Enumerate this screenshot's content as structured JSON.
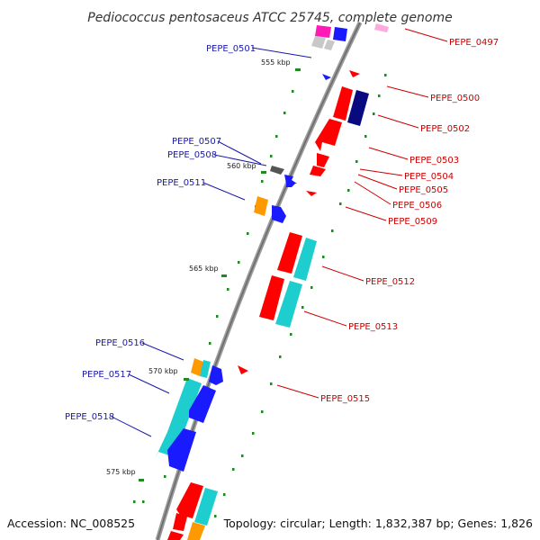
{
  "title": "Pediococcus pentosaceus ATCC 25745, complete genome",
  "footer": {
    "accession": "Accession: NC_008525",
    "summary": "Topology: circular; Length: 1,832,387 bp; Genes: 1,826"
  },
  "colors": {
    "backbone": "#808080",
    "tick": "#1f8a1f",
    "forward_label": "#cc0000",
    "reverse_label": "#1a1aa6",
    "red": "#ff0000",
    "dark_red": "#cc0000",
    "blue": "#1a1aff",
    "navy": "#0a0a80",
    "cyan": "#1ecece",
    "orange": "#ff9900",
    "magenta": "#ff1ab8",
    "pink": "#ffaadd",
    "gray": "#c8c8c8",
    "dark_gray": "#555555"
  },
  "kbp_ticks": [
    {
      "kbp": 555,
      "label": "555 kbp"
    },
    {
      "kbp": 560,
      "label": "560 kbp"
    },
    {
      "kbp": 565,
      "label": "565 kbp"
    },
    {
      "kbp": 570,
      "label": "570 kbp"
    },
    {
      "kbp": 575,
      "label": "575 kbp"
    }
  ],
  "genes": [
    {
      "id": "PEPE_0497",
      "side": "right"
    },
    {
      "id": "PEPE_0500",
      "side": "right"
    },
    {
      "id": "PEPE_0502",
      "side": "right"
    },
    {
      "id": "PEPE_0503",
      "side": "right"
    },
    {
      "id": "PEPE_0504",
      "side": "right"
    },
    {
      "id": "PEPE_0505",
      "side": "right"
    },
    {
      "id": "PEPE_0506",
      "side": "right"
    },
    {
      "id": "PEPE_0509",
      "side": "right"
    },
    {
      "id": "PEPE_0512",
      "side": "right"
    },
    {
      "id": "PEPE_0513",
      "side": "right"
    },
    {
      "id": "PEPE_0515",
      "side": "right"
    },
    {
      "id": "PEPE_0501",
      "side": "left"
    },
    {
      "id": "PEPE_0507",
      "side": "left"
    },
    {
      "id": "PEPE_0508",
      "side": "left"
    },
    {
      "id": "PEPE_0511",
      "side": "left"
    },
    {
      "id": "PEPE_0516",
      "side": "left"
    },
    {
      "id": "PEPE_0517",
      "side": "left"
    },
    {
      "id": "PEPE_0518",
      "side": "left"
    }
  ]
}
